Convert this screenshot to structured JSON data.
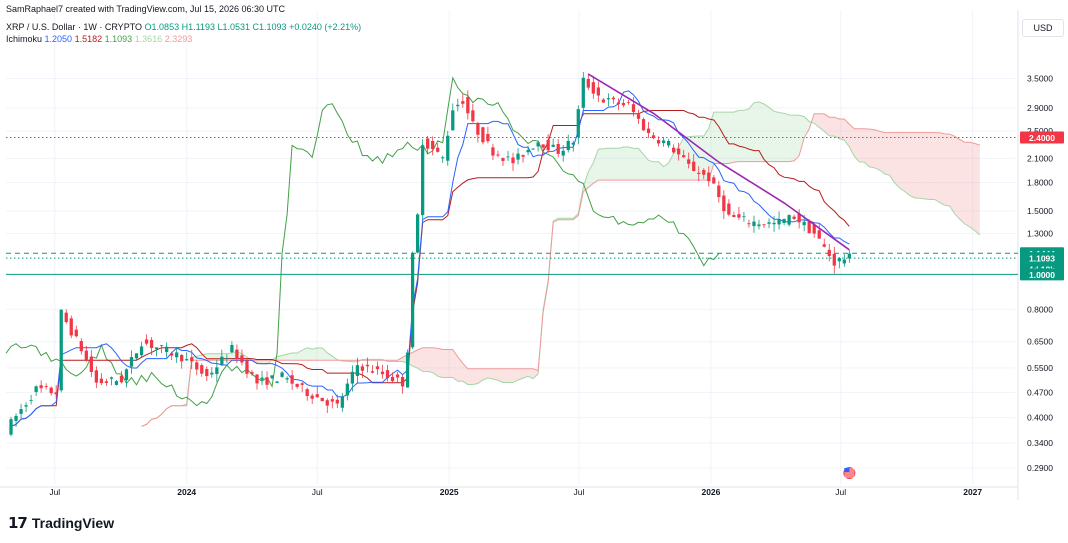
{
  "header": {
    "credit": "SamRaphael7 created with TradingView.com, Jul 15, 2026 06:30 UTC",
    "symbol": "XRP / U.S. Dollar · 1W · CRYPTO",
    "open": "O1.0853",
    "high": "H1.1193",
    "low": "L1.0531",
    "close": "C1.1093",
    "change": "+0.0240 (+2.21%)",
    "indicator": "Ichimoku",
    "ichimoku_values": [
      "1.2050",
      "1.5182",
      "1.1093",
      "1.3616",
      "2.3293"
    ]
  },
  "currency": "USD",
  "brand": "TradingView",
  "colors": {
    "up": "#089981",
    "down": "#f23645",
    "tenkan": "#2962ff",
    "kijun": "#b71c1c",
    "chikou": "#43a047",
    "span_a": "#a5d6a7",
    "span_b": "#ef9a9a",
    "trendline": "#9c27b0"
  },
  "chart_data": {
    "type": "candlestick",
    "y_scale": "log",
    "ylim": [
      0.26,
      4.2
    ],
    "xlim": [
      "2023-04-24",
      "2027-03-01"
    ],
    "y_ticks": [
      "3.5000",
      "2.9000",
      "2.5000",
      "2.1000",
      "1.8000",
      "1.5000",
      "1.3000",
      "0.8000",
      "0.6500",
      "0.5500",
      "0.4700",
      "0.4000",
      "0.3400",
      "0.2900"
    ],
    "x_ticks": [
      "Jul",
      "2024",
      "Jul",
      "2025",
      "Jul",
      "2026",
      "Jul",
      "2027"
    ],
    "price_labels": [
      {
        "value": "2.4000",
        "kind": "red"
      },
      {
        "value": "1.1444",
        "kind": "green"
      },
      {
        "value": "1.1093",
        "kind": "green"
      },
      {
        "value": "4d 18h",
        "kind": "green"
      },
      {
        "value": "1.0000",
        "kind": "green"
      }
    ],
    "horizontal_lines": [
      {
        "price": 2.4,
        "style": "dotted",
        "color": "#f23645"
      },
      {
        "price": 1.1444,
        "style": "dashed",
        "color": "#089981"
      },
      {
        "price": 1.1093,
        "style": "dotted",
        "color": "#089981"
      },
      {
        "price": 1.0,
        "style": "solid",
        "color": "#089981"
      }
    ],
    "trendline": [
      [
        "2025-07-14",
        3.6
      ],
      [
        "2025-10-13",
        2.8
      ],
      [
        "2026-01-12",
        2.05
      ],
      [
        "2026-04-13",
        1.58
      ],
      [
        "2026-07-13",
        1.17
      ]
    ],
    "price_path": [
      [
        "2023-05-01",
        0.37
      ],
      [
        "2023-06-12",
        0.48
      ],
      [
        "2023-07-10",
        0.47
      ],
      [
        "2023-07-17",
        0.78
      ],
      [
        "2023-08-14",
        0.62
      ],
      [
        "2023-09-04",
        0.5
      ],
      [
        "2023-10-09",
        0.51
      ],
      [
        "2023-11-06",
        0.65
      ],
      [
        "2023-12-04",
        0.62
      ],
      [
        "2024-01-01",
        0.59
      ],
      [
        "2024-02-05",
        0.52
      ],
      [
        "2024-03-11",
        0.62
      ],
      [
        "2024-04-15",
        0.5
      ],
      [
        "2024-05-20",
        0.52
      ],
      [
        "2024-06-24",
        0.47
      ],
      [
        "2024-08-05",
        0.43
      ],
      [
        "2024-09-02",
        0.56
      ],
      [
        "2024-10-07",
        0.53
      ],
      [
        "2024-11-04",
        0.5
      ],
      [
        "2024-11-11",
        0.62
      ],
      [
        "2024-11-18",
        1.12
      ],
      [
        "2024-11-25",
        1.45
      ],
      [
        "2024-12-02",
        2.35
      ],
      [
        "2024-12-30",
        2.1
      ],
      [
        "2025-01-13",
        2.9
      ],
      [
        "2025-01-27",
        3.05
      ],
      [
        "2025-02-10",
        2.6
      ],
      [
        "2025-03-10",
        2.2
      ],
      [
        "2025-04-07",
        2.05
      ],
      [
        "2025-05-12",
        2.35
      ],
      [
        "2025-06-09",
        2.2
      ],
      [
        "2025-06-30",
        2.35
      ],
      [
        "2025-07-14",
        3.45
      ],
      [
        "2025-08-11",
        3.05
      ],
      [
        "2025-09-15",
        2.95
      ],
      [
        "2025-10-13",
        2.45
      ],
      [
        "2025-11-10",
        2.3
      ],
      [
        "2025-12-08",
        2.0
      ],
      [
        "2026-01-05",
        1.85
      ],
      [
        "2026-02-02",
        1.45
      ],
      [
        "2026-03-02",
        1.4
      ],
      [
        "2026-04-06",
        1.38
      ],
      [
        "2026-05-04",
        1.45
      ],
      [
        "2026-06-01",
        1.3
      ],
      [
        "2026-06-29",
        1.08
      ],
      [
        "2026-07-13",
        1.11
      ]
    ]
  }
}
